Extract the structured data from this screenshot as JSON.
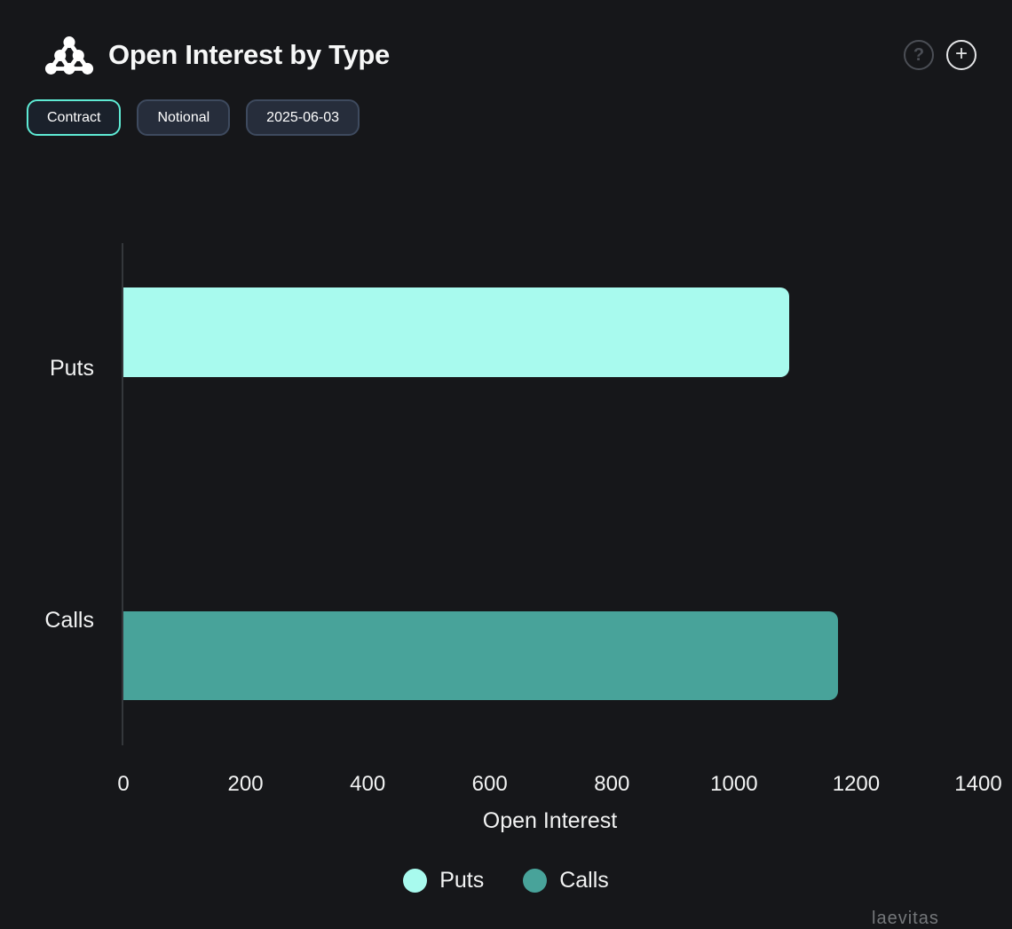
{
  "header": {
    "title": "Open Interest by Type",
    "help_glyph": "?",
    "add_glyph": "+"
  },
  "toolbar": {
    "buttons": [
      {
        "label": "Contract",
        "active": true
      },
      {
        "label": "Notional",
        "active": false
      },
      {
        "label": "2025-06-03",
        "active": false
      }
    ]
  },
  "chart_data": {
    "type": "bar",
    "orientation": "horizontal",
    "title": "Open Interest by Type",
    "categories": [
      "Puts",
      "Calls"
    ],
    "series": [
      {
        "name": "Puts",
        "color": "#a8faee",
        "values": [
          1090,
          0
        ]
      },
      {
        "name": "Calls",
        "color": "#48a39a",
        "values": [
          0,
          1170
        ]
      }
    ],
    "xlabel": "Open Interest",
    "ylabel": "",
    "xlim": [
      0,
      1400
    ],
    "xticks": [
      0,
      200,
      400,
      600,
      800,
      1000,
      1200,
      1400
    ],
    "grid": false,
    "legend_position": "bottom"
  },
  "colors": {
    "background": "#16171a",
    "accent": "#5eead4",
    "axis_line": "#34373b",
    "pill_bg": "#262d3b",
    "pill_border": "#3e4a5e"
  },
  "watermark": "laevitas"
}
